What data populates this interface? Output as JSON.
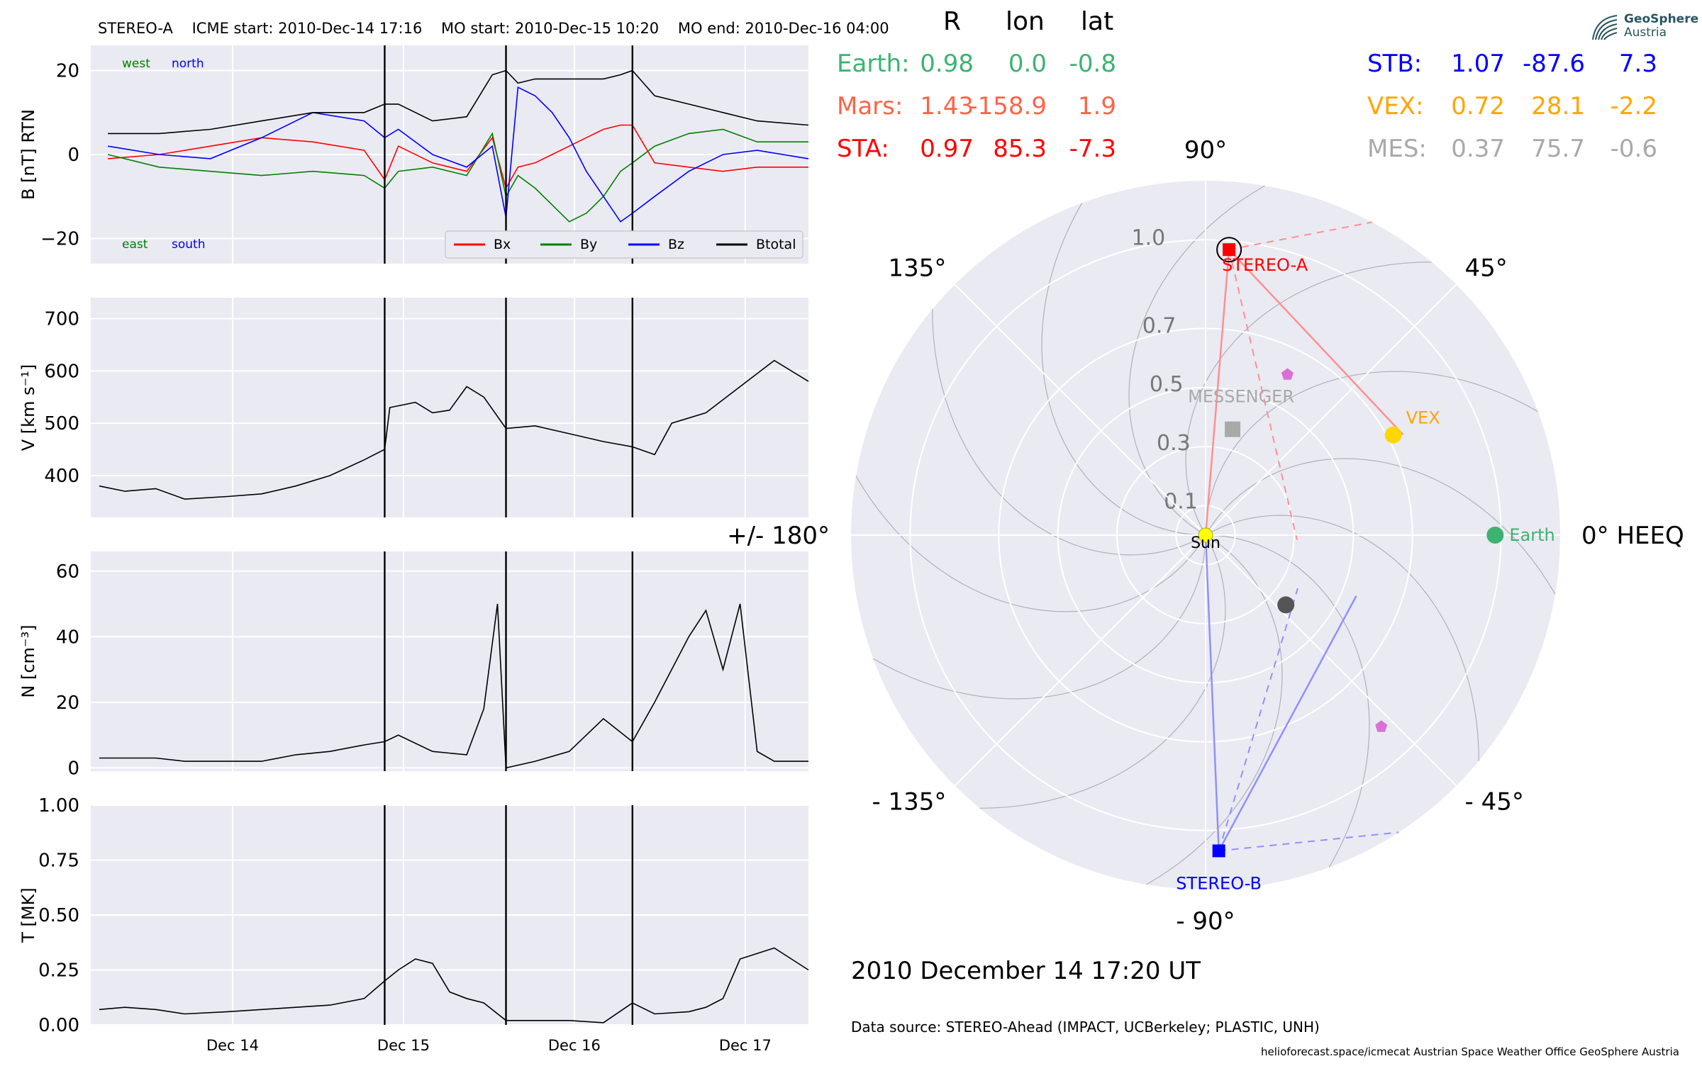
{
  "header": {
    "spacecraft": "STEREO-A",
    "icme_start": "ICME start: 2010-Dec-14 17:16",
    "mo_start": "MO start: 2010-Dec-15 10:20",
    "mo_end": "MO end: 2010-Dec-16 04:00"
  },
  "logo": {
    "line1": "GeoSphere",
    "line2": "Austria",
    "icon": "geosphere-logo-icon"
  },
  "positions": {
    "col_headers": [
      "R",
      "lon",
      "lat"
    ],
    "left": [
      {
        "name": "Earth:",
        "R": "0.98",
        "lon": "0.0",
        "lat": "-0.8",
        "color": "#3cb371"
      },
      {
        "name": "Mars:",
        "R": "1.43",
        "lon": "-158.9",
        "lat": "1.9",
        "color": "#ff6347"
      },
      {
        "name": "STA:",
        "R": "0.97",
        "lon": "85.3",
        "lat": "-7.3",
        "color": "#ff0000"
      }
    ],
    "right": [
      {
        "name": "STB:",
        "R": "1.07",
        "lon": "-87.6",
        "lat": "7.3",
        "color": "#0000ff"
      },
      {
        "name": "VEX:",
        "R": "0.72",
        "lon": "28.1",
        "lat": "-2.2",
        "color": "#ffa500"
      },
      {
        "name": "MES:",
        "R": "0.37",
        "lon": "75.7",
        "lat": "-0.6",
        "color": "#a9a9a9"
      }
    ]
  },
  "polar": {
    "angle_labels": [
      "90°",
      "45°",
      "0° HEEQ",
      "- 45°",
      "- 90°",
      "- 135°",
      "+/- 180°",
      "135°"
    ],
    "radial_ticks": [
      "0.1",
      "0.3",
      "0.5",
      "0.7",
      "1.0"
    ],
    "rmax": 1.2,
    "bodies": [
      {
        "label": "Sun",
        "r": 0.0,
        "lon": 0,
        "color": "#ffff00",
        "marker": "circle"
      },
      {
        "label": "Earth",
        "r": 0.98,
        "lon": 0.0,
        "color": "#3cb371",
        "marker": "circle"
      },
      {
        "label": "VEX",
        "r": 0.72,
        "lon": 28.1,
        "color": "#ffd700",
        "marker": "circle"
      },
      {
        "label": "MESSENGER",
        "r": 0.37,
        "lon": 75.7,
        "color": "#a9a9a9",
        "marker": "square"
      },
      {
        "label": "STEREO-A",
        "r": 0.97,
        "lon": 85.3,
        "color": "#ff0000",
        "marker": "square"
      },
      {
        "label": "STEREO-B",
        "r": 1.07,
        "lon": -87.6,
        "color": "#0000ff",
        "marker": "square"
      },
      {
        "label": "",
        "r": 0.36,
        "lon": -41.0,
        "color": "#555555",
        "marker": "circle"
      },
      {
        "label": "",
        "r": 0.61,
        "lon": 63.0,
        "color": "#da70d6",
        "marker": "pentagon"
      },
      {
        "label": "",
        "r": 0.88,
        "lon": -47.5,
        "color": "#da70d6",
        "marker": "pentagon"
      }
    ]
  },
  "footer": {
    "date": "2010 December 14  17:20 UT",
    "source": "Data source: STEREO-Ahead (IMPACT, UCBerkeley; PLASTIC, UNH)",
    "credits": "helioforecast.space/icmecat   Austrian Space Weather Office   GeoSphere Austria"
  },
  "chart_data": [
    {
      "type": "line",
      "id": "B",
      "ylabel": "B [nT] RTN",
      "ylim": [
        -26,
        26
      ],
      "yticks": [
        -20,
        0,
        20
      ],
      "xlim": [
        0,
        4.2
      ],
      "xticks": [
        0.83,
        1.83,
        2.83,
        3.83
      ],
      "xticklabels": [
        "Dec 14",
        "Dec 15",
        "Dec 16",
        "Dec 17"
      ],
      "vlines": [
        1.72,
        2.43,
        3.17
      ],
      "corner_labels": {
        "west": "west",
        "north": "north",
        "east": "east",
        "south": "south"
      },
      "legend": "bottom-right",
      "series": [
        {
          "name": "Bx",
          "color": "#ff0000",
          "x": [
            0.1,
            0.4,
            0.7,
            1.0,
            1.3,
            1.6,
            1.72,
            1.8,
            2.0,
            2.2,
            2.35,
            2.43,
            2.5,
            2.6,
            2.7,
            2.8,
            2.9,
            3.0,
            3.1,
            3.17,
            3.3,
            3.5,
            3.7,
            3.9,
            4.2
          ],
          "y": [
            -1,
            0,
            2,
            4,
            3,
            1,
            -6,
            2,
            -2,
            -4,
            4,
            -8,
            -3,
            -2,
            0,
            2,
            4,
            6,
            7,
            7,
            -2,
            -3,
            -4,
            -3,
            -3
          ]
        },
        {
          "name": "By",
          "color": "#008000",
          "x": [
            0.1,
            0.4,
            0.7,
            1.0,
            1.3,
            1.6,
            1.72,
            1.8,
            2.0,
            2.2,
            2.35,
            2.43,
            2.5,
            2.6,
            2.7,
            2.8,
            2.9,
            3.0,
            3.1,
            3.17,
            3.3,
            3.5,
            3.7,
            3.9,
            4.2
          ],
          "y": [
            0,
            -3,
            -4,
            -5,
            -4,
            -5,
            -8,
            -4,
            -3,
            -5,
            5,
            -10,
            -5,
            -8,
            -12,
            -16,
            -14,
            -10,
            -4,
            -2,
            2,
            5,
            6,
            3,
            3
          ]
        },
        {
          "name": "Bz",
          "color": "#0000ff",
          "x": [
            0.1,
            0.4,
            0.7,
            1.0,
            1.3,
            1.6,
            1.72,
            1.8,
            2.0,
            2.2,
            2.35,
            2.43,
            2.5,
            2.6,
            2.7,
            2.8,
            2.9,
            3.0,
            3.1,
            3.17,
            3.3,
            3.5,
            3.7,
            3.9,
            4.2
          ],
          "y": [
            2,
            0,
            -1,
            4,
            10,
            8,
            4,
            6,
            0,
            -3,
            2,
            -15,
            16,
            14,
            10,
            4,
            -4,
            -10,
            -16,
            -14,
            -10,
            -4,
            0,
            1,
            -1
          ]
        },
        {
          "name": "Btotal",
          "color": "#000000",
          "x": [
            0.1,
            0.4,
            0.7,
            1.0,
            1.3,
            1.6,
            1.72,
            1.8,
            2.0,
            2.2,
            2.35,
            2.43,
            2.5,
            2.6,
            2.7,
            2.8,
            2.9,
            3.0,
            3.1,
            3.17,
            3.3,
            3.5,
            3.7,
            3.9,
            4.2
          ],
          "y": [
            5,
            5,
            6,
            8,
            10,
            10,
            12,
            12,
            8,
            9,
            19,
            20,
            17,
            18,
            18,
            18,
            18,
            18,
            19,
            20,
            14,
            12,
            10,
            8,
            7
          ]
        }
      ]
    },
    {
      "type": "line",
      "id": "V",
      "ylabel": "V [km s⁻¹]",
      "ylim": [
        320,
        740
      ],
      "yticks": [
        400,
        500,
        600,
        700
      ],
      "xlim": [
        0,
        4.2
      ],
      "xticks": [
        0.83,
        1.83,
        2.83,
        3.83
      ],
      "xticklabels": [
        "Dec 14",
        "Dec 15",
        "Dec 16",
        "Dec 17"
      ],
      "vlines": [
        1.72,
        2.43,
        3.17
      ],
      "series": [
        {
          "name": "",
          "color": "#000000",
          "x": [
            0.05,
            0.2,
            0.38,
            0.55,
            0.8,
            1.0,
            1.2,
            1.4,
            1.6,
            1.72,
            1.75,
            1.9,
            2.0,
            2.1,
            2.2,
            2.3,
            2.43,
            2.6,
            2.8,
            3.0,
            3.17,
            3.3,
            3.4,
            3.6,
            3.8,
            4.0,
            4.2
          ],
          "y": [
            380,
            370,
            375,
            355,
            360,
            365,
            380,
            400,
            430,
            450,
            530,
            540,
            520,
            525,
            570,
            550,
            490,
            495,
            480,
            465,
            455,
            440,
            500,
            520,
            570,
            620,
            580
          ]
        }
      ]
    },
    {
      "type": "line",
      "id": "N",
      "ylabel": "N [cm⁻³]",
      "ylim": [
        -1,
        66
      ],
      "yticks": [
        0,
        20,
        40,
        60
      ],
      "xlim": [
        0,
        4.2
      ],
      "xticks": [
        0.83,
        1.83,
        2.83,
        3.83
      ],
      "xticklabels": [
        "Dec 14",
        "Dec 15",
        "Dec 16",
        "Dec 17"
      ],
      "vlines": [
        1.72,
        2.43,
        3.17
      ],
      "series": [
        {
          "name": "",
          "color": "#000000",
          "x": [
            0.05,
            0.2,
            0.38,
            0.55,
            0.8,
            1.0,
            1.2,
            1.4,
            1.6,
            1.72,
            1.8,
            2.0,
            2.2,
            2.3,
            2.38,
            2.43,
            2.6,
            2.8,
            3.0,
            3.17,
            3.3,
            3.5,
            3.6,
            3.7,
            3.8,
            3.9,
            4.0,
            4.2
          ],
          "y": [
            3,
            3,
            3,
            2,
            2,
            2,
            4,
            5,
            7,
            8,
            10,
            5,
            4,
            18,
            50,
            0,
            2,
            5,
            15,
            8,
            20,
            40,
            48,
            30,
            50,
            5,
            2,
            2
          ]
        }
      ]
    },
    {
      "type": "line",
      "id": "T",
      "ylabel": "T [MK]",
      "ylim": [
        0,
        1.0
      ],
      "yticks": [
        0.0,
        0.25,
        0.5,
        0.75,
        1.0
      ],
      "yticklabels": [
        "0.00",
        "0.25",
        "0.50",
        "0.75",
        "1.00"
      ],
      "xlim": [
        0,
        4.2
      ],
      "xticks": [
        0.83,
        1.83,
        2.83,
        3.83
      ],
      "xticklabels": [
        "Dec 14",
        "Dec 15",
        "Dec 16",
        "Dec 17"
      ],
      "vlines": [
        1.72,
        2.43,
        3.17
      ],
      "series": [
        {
          "name": "",
          "color": "#000000",
          "x": [
            0.05,
            0.2,
            0.38,
            0.55,
            0.8,
            1.0,
            1.2,
            1.4,
            1.6,
            1.72,
            1.8,
            1.9,
            2.0,
            2.1,
            2.2,
            2.3,
            2.43,
            2.6,
            2.8,
            3.0,
            3.17,
            3.3,
            3.5,
            3.6,
            3.7,
            3.8,
            4.0,
            4.2
          ],
          "y": [
            0.07,
            0.08,
            0.07,
            0.05,
            0.06,
            0.07,
            0.08,
            0.09,
            0.12,
            0.2,
            0.25,
            0.3,
            0.28,
            0.15,
            0.12,
            0.1,
            0.02,
            0.02,
            0.02,
            0.01,
            0.1,
            0.05,
            0.06,
            0.08,
            0.12,
            0.3,
            0.35,
            0.25
          ]
        }
      ]
    }
  ]
}
